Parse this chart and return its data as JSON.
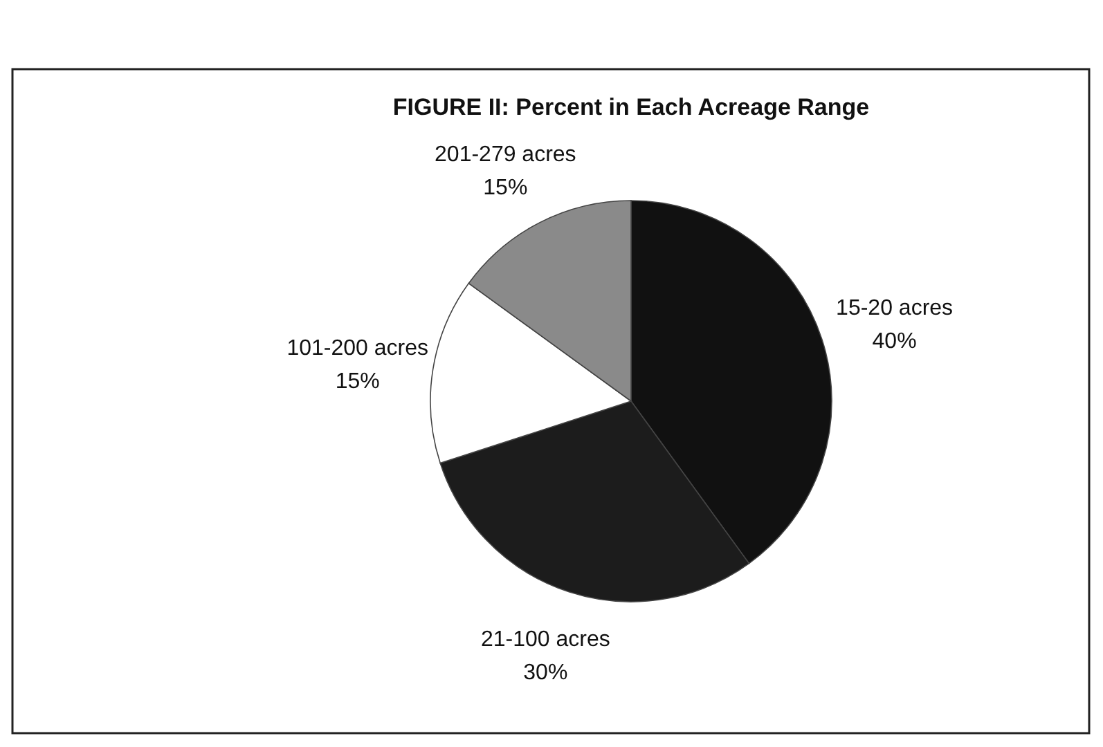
{
  "chart_data": {
    "type": "pie",
    "title": "FIGURE II:  Percent in Each Acreage Range",
    "categories": [
      "15-20 acres",
      "21-100 acres",
      "101-200 acres",
      "201-279 acres"
    ],
    "values": [
      40,
      30,
      15,
      15
    ],
    "colors": [
      "#111111",
      "#1c1c1c",
      "#ffffff",
      "#8a8a8a"
    ],
    "value_labels": [
      "40%",
      "30%",
      "15%",
      "15%"
    ]
  }
}
